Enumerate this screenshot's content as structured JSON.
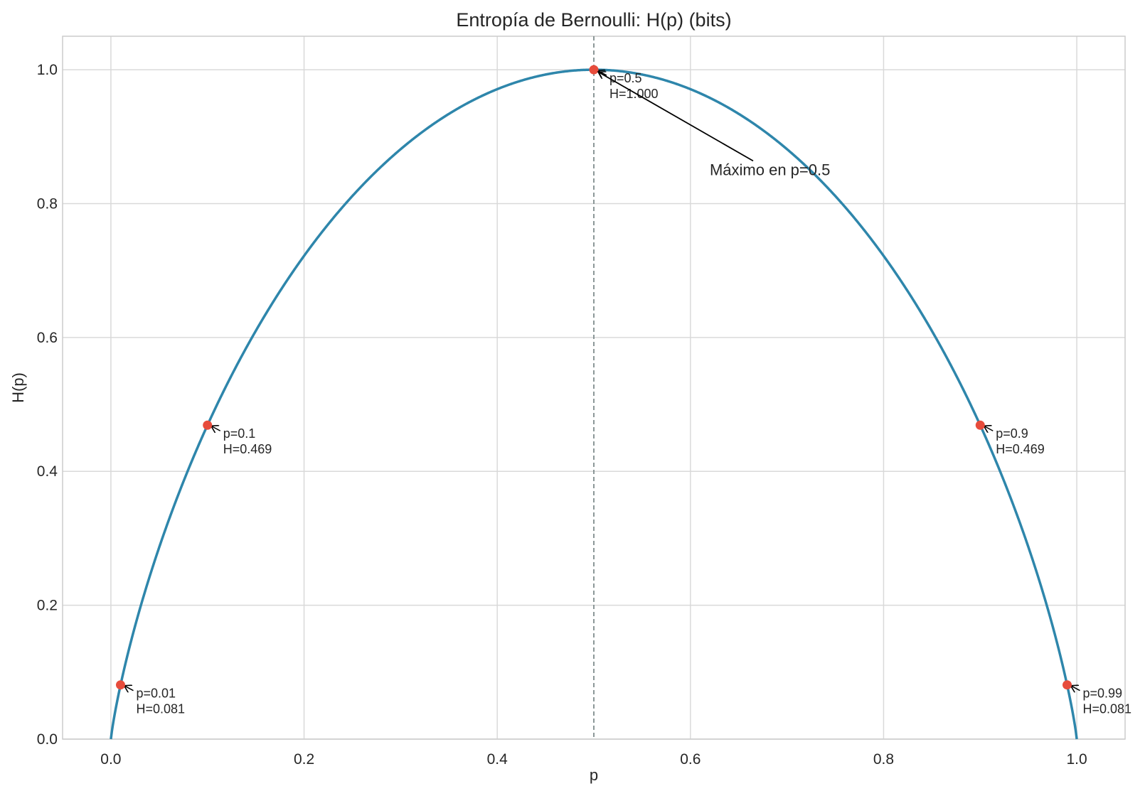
{
  "chart_data": {
    "type": "line",
    "title": "Entropía de Bernoulli: H(p) (bits)",
    "xlabel": "p",
    "ylabel": "H(p)",
    "xlim": [
      -0.05,
      1.05
    ],
    "ylim": [
      0,
      1.05
    ],
    "xticks": [
      "0.0",
      "0.2",
      "0.4",
      "0.6",
      "0.8",
      "1.0"
    ],
    "yticks": [
      "0.0",
      "0.2",
      "0.4",
      "0.6",
      "0.8",
      "1.0"
    ],
    "grid": true,
    "series": [
      {
        "function": "H(p) = -p·log2(p) - (1-p)·log2(1-p)",
        "x_range": [
          0,
          1
        ],
        "color": "#2e86ab"
      }
    ],
    "vline": {
      "x": 0.5,
      "style": "dashed",
      "color": "#7f8c8d"
    },
    "points": [
      {
        "p": 0.01,
        "h": 0.081,
        "line1": "p=0.01",
        "line2": "H=0.081"
      },
      {
        "p": 0.1,
        "h": 0.469,
        "line1": "p=0.1",
        "line2": "H=0.469"
      },
      {
        "p": 0.5,
        "h": 1.0,
        "line1": "p=0.5",
        "line2": "H=1.000"
      },
      {
        "p": 0.9,
        "h": 0.469,
        "line1": "p=0.9",
        "line2": "H=0.469"
      },
      {
        "p": 0.99,
        "h": 0.081,
        "line1": "p=0.99",
        "line2": "H=0.081"
      }
    ],
    "point_color": "#e74c3c",
    "annotation": {
      "text": "Máximo en p=0.5",
      "target_p": 0.5,
      "target_h": 1.0,
      "text_p": 0.62,
      "text_h": 0.85
    }
  }
}
